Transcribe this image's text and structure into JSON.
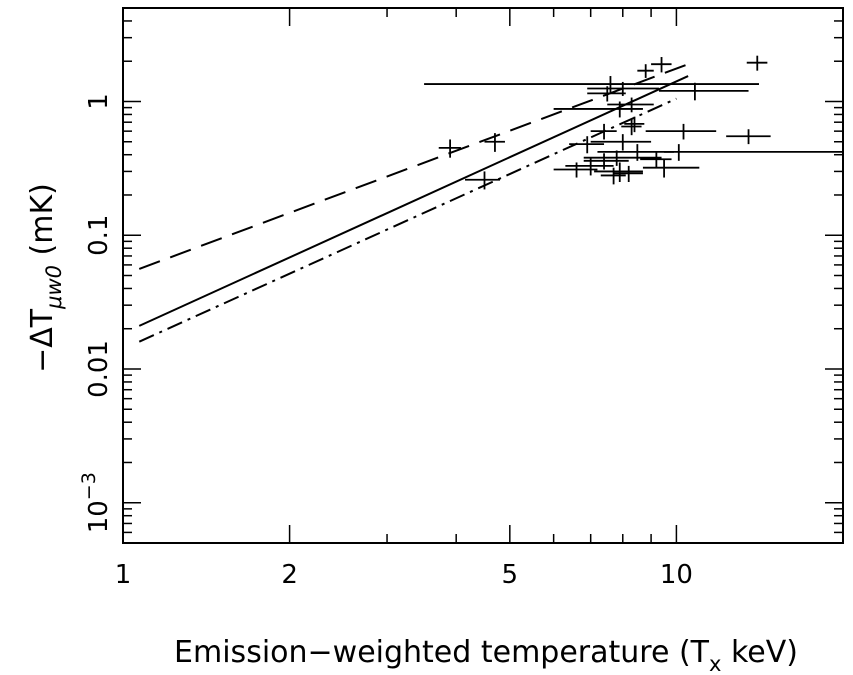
{
  "chart_data": {
    "type": "scatter",
    "xlabel_main": "Emission−weighted temperature (T",
    "xlabel_sub": "x",
    "xlabel_end": " keV)",
    "ylabel_main": "−ΔT",
    "ylabel_sub": "μw0",
    "ylabel_end": " (mK)",
    "x_scale": "log",
    "y_scale": "log",
    "xlim": [
      1,
      20
    ],
    "ylim": [
      0.0005,
      5
    ],
    "x_ticks": [
      {
        "value": 1,
        "label": "1"
      },
      {
        "value": 2,
        "label": "2"
      },
      {
        "value": 5,
        "label": "5"
      },
      {
        "value": 10,
        "label": "10"
      }
    ],
    "y_ticks": [
      {
        "value": 0.001,
        "label": "10",
        "sup": "−3"
      },
      {
        "value": 0.01,
        "label": "0.01",
        "sup": ""
      },
      {
        "value": 0.1,
        "label": "0.1",
        "sup": ""
      },
      {
        "value": 1,
        "label": "1",
        "sup": ""
      }
    ],
    "lines": [
      {
        "style": "solid",
        "x": [
          1.07,
          10.5
        ],
        "y": [
          0.021,
          1.55
        ]
      },
      {
        "style": "dashed",
        "x": [
          1.07,
          10.5
        ],
        "y": [
          0.056,
          1.9
        ]
      },
      {
        "style": "dashdot",
        "x": [
          1.07,
          10.0
        ],
        "y": [
          0.016,
          1.05
        ]
      }
    ],
    "points": [
      {
        "x": 3.9,
        "y": 0.45,
        "x_err": [
          0.18,
          0.18
        ],
        "y_err": [
          0.07,
          0.07
        ]
      },
      {
        "x": 4.7,
        "y": 0.5,
        "x_err": [
          0.2,
          0.2
        ],
        "y_err": [
          0.08,
          0.08
        ]
      },
      {
        "x": 4.5,
        "y": 0.26,
        "x_err": [
          0.35,
          0.3
        ],
        "y_err": [
          0.04,
          0.04
        ]
      },
      {
        "x": 7.6,
        "y": 1.35,
        "x_err": [
          4.1,
          6.5
        ],
        "y_err": [
          0.2,
          0.2
        ]
      },
      {
        "x": 9.4,
        "y": 1.9,
        "x_err": [
          0.4,
          0.4
        ],
        "y_err": [
          0.25,
          0.25
        ]
      },
      {
        "x": 8.8,
        "y": 1.7,
        "x_err": [
          0.3,
          0.3
        ],
        "y_err": [
          0.2,
          0.2
        ]
      },
      {
        "x": 14.0,
        "y": 1.95,
        "x_err": [
          0.6,
          0.6
        ],
        "y_err": [
          0.25,
          0.25
        ]
      },
      {
        "x": 8.0,
        "y": 1.25,
        "x_err": [
          1.1,
          1.3
        ],
        "y_err": [
          0.15,
          0.15
        ]
      },
      {
        "x": 10.8,
        "y": 1.2,
        "x_err": [
          1.5,
          2.7
        ],
        "y_err": [
          0.18,
          0.18
        ]
      },
      {
        "x": 7.5,
        "y": 1.15,
        "x_err": [
          0.6,
          0.6
        ],
        "y_err": [
          0.15,
          0.15
        ]
      },
      {
        "x": 8.3,
        "y": 0.95,
        "x_err": [
          0.8,
          0.8
        ],
        "y_err": [
          0.12,
          0.12
        ]
      },
      {
        "x": 7.9,
        "y": 0.88,
        "x_err": [
          1.9,
          0.8
        ],
        "y_err": [
          0.12,
          0.12
        ]
      },
      {
        "x": 8.4,
        "y": 0.68,
        "x_err": [
          0.35,
          0.35
        ],
        "y_err": [
          0.09,
          0.09
        ]
      },
      {
        "x": 8.3,
        "y": 0.65,
        "x_err": [
          0.35,
          0.35
        ],
        "y_err": [
          0.09,
          0.09
        ]
      },
      {
        "x": 7.4,
        "y": 0.6,
        "x_err": [
          0.4,
          0.4
        ],
        "y_err": [
          0.08,
          0.08
        ]
      },
      {
        "x": 10.3,
        "y": 0.6,
        "x_err": [
          1.5,
          1.5
        ],
        "y_err": [
          0.08,
          0.08
        ]
      },
      {
        "x": 13.5,
        "y": 0.55,
        "x_err": [
          1.2,
          1.3
        ],
        "y_err": [
          0.07,
          0.07
        ]
      },
      {
        "x": 8.0,
        "y": 0.5,
        "x_err": [
          1.0,
          1.0
        ],
        "y_err": [
          0.07,
          0.07
        ]
      },
      {
        "x": 6.9,
        "y": 0.48,
        "x_err": [
          0.5,
          0.5
        ],
        "y_err": [
          0.07,
          0.07
        ]
      },
      {
        "x": 10.1,
        "y": 0.42,
        "x_err": [
          0.6,
          9.9
        ],
        "y_err": [
          0.06,
          0.06
        ]
      },
      {
        "x": 8.5,
        "y": 0.42,
        "x_err": [
          1.3,
          1.4
        ],
        "y_err": [
          0.06,
          0.06
        ]
      },
      {
        "x": 7.8,
        "y": 0.38,
        "x_err": [
          1.0,
          1.6
        ],
        "y_err": [
          0.05,
          0.05
        ]
      },
      {
        "x": 9.2,
        "y": 0.37,
        "x_err": [
          0.6,
          0.6
        ],
        "y_err": [
          0.05,
          0.05
        ]
      },
      {
        "x": 7.4,
        "y": 0.36,
        "x_err": [
          0.6,
          0.8
        ],
        "y_err": [
          0.05,
          0.05
        ]
      },
      {
        "x": 7.0,
        "y": 0.33,
        "x_err": [
          0.7,
          0.7
        ],
        "y_err": [
          0.05,
          0.05
        ]
      },
      {
        "x": 9.5,
        "y": 0.32,
        "x_err": [
          0.8,
          1.5
        ],
        "y_err": [
          0.05,
          0.05
        ]
      },
      {
        "x": 6.6,
        "y": 0.31,
        "x_err": [
          0.6,
          0.6
        ],
        "y_err": [
          0.04,
          0.04
        ]
      },
      {
        "x": 7.9,
        "y": 0.3,
        "x_err": [
          0.8,
          0.8
        ],
        "y_err": [
          0.05,
          0.05
        ]
      },
      {
        "x": 8.2,
        "y": 0.29,
        "x_err": [
          0.5,
          0.5
        ],
        "y_err": [
          0.04,
          0.04
        ]
      },
      {
        "x": 7.7,
        "y": 0.28,
        "x_err": [
          0.4,
          0.4
        ],
        "y_err": [
          0.04,
          0.04
        ]
      }
    ]
  }
}
